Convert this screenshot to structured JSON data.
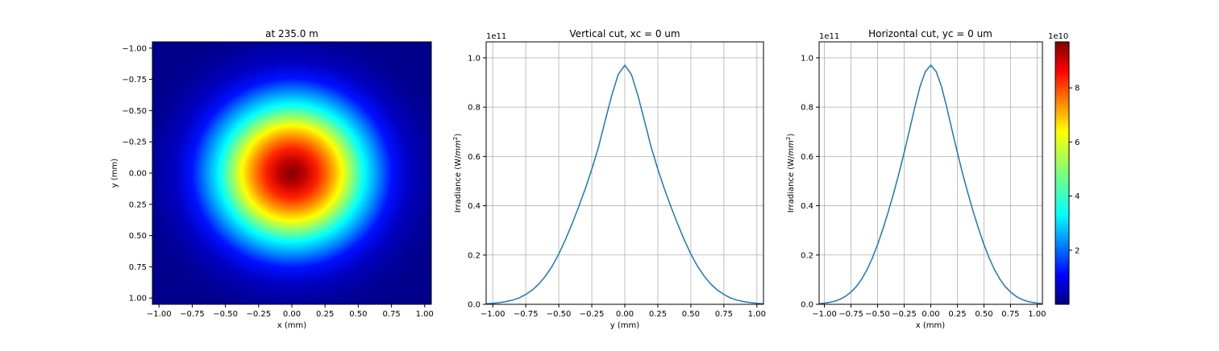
{
  "chart_data": [
    {
      "type": "heatmap",
      "title": "at 235.0 m",
      "xlabel": "x (mm)",
      "ylabel": "y (mm)",
      "xlim": [
        -1.05,
        1.05
      ],
      "ylim": [
        1.05,
        -1.05
      ],
      "xticks": [
        "−1.00",
        "−0.75",
        "−0.50",
        "−0.25",
        "0.00",
        "0.25",
        "0.50",
        "0.75",
        "1.00"
      ],
      "xtick_values": [
        -1.0,
        -0.75,
        -0.5,
        -0.25,
        0.0,
        0.25,
        0.5,
        0.75,
        1.0
      ],
      "yticks": [
        "−1.00",
        "−0.75",
        "−0.50",
        "−0.25",
        "0.00",
        "0.25",
        "0.50",
        "0.75",
        "1.00"
      ],
      "ytick_values": [
        -1.0,
        -0.75,
        -0.5,
        -0.25,
        0.0,
        0.25,
        0.5,
        0.75,
        1.0
      ],
      "colormap": "jet",
      "peak": 97000000000.0,
      "center": [
        0.0,
        0.0
      ],
      "sigma": 0.3
    },
    {
      "type": "line",
      "title": "Vertical cut,  xc = 0 um",
      "xlabel": "y (mm)",
      "ylabel": "Irradiance (W/mm²)",
      "offset_text": "1e11",
      "xlim": [
        -1.05,
        1.05
      ],
      "ylim": [
        0,
        1.065
      ],
      "xticks": [
        "−1.00",
        "−0.75",
        "−0.50",
        "−0.25",
        "0.00",
        "0.25",
        "0.50",
        "0.75",
        "1.00"
      ],
      "xtick_values": [
        -1.0,
        -0.75,
        -0.5,
        -0.25,
        0.0,
        0.25,
        0.5,
        0.75,
        1.0
      ],
      "yticks": [
        "0.0",
        "0.2",
        "0.4",
        "0.6",
        "0.8",
        "1.0"
      ],
      "ytick_values": [
        0.0,
        0.2,
        0.4,
        0.6,
        0.8,
        1.0
      ],
      "grid": true,
      "color": "#1f77b4",
      "series": [
        {
          "x": [
            -1.05,
            -1.0,
            -0.95,
            -0.9,
            -0.85,
            -0.8,
            -0.75,
            -0.7,
            -0.65,
            -0.6,
            -0.55,
            -0.5,
            -0.45,
            -0.4,
            -0.35,
            -0.3,
            -0.25,
            -0.2,
            -0.15,
            -0.1,
            -0.05,
            0.0,
            0.05,
            0.1,
            0.15,
            0.2,
            0.25,
            0.3,
            0.35,
            0.4,
            0.45,
            0.5,
            0.55,
            0.6,
            0.65,
            0.7,
            0.75,
            0.8,
            0.85,
            0.9,
            0.95,
            1.0,
            1.05
          ],
          "y": [
            0.002,
            0.004,
            0.007,
            0.011,
            0.017,
            0.026,
            0.04,
            0.058,
            0.083,
            0.115,
            0.155,
            0.204,
            0.262,
            0.326,
            0.395,
            0.468,
            0.548,
            0.637,
            0.742,
            0.846,
            0.933,
            0.97,
            0.933,
            0.846,
            0.742,
            0.637,
            0.548,
            0.468,
            0.395,
            0.326,
            0.262,
            0.204,
            0.155,
            0.115,
            0.083,
            0.058,
            0.04,
            0.026,
            0.017,
            0.011,
            0.007,
            0.004,
            0.002
          ]
        }
      ]
    },
    {
      "type": "line",
      "title": "Horizontal cut, yc = 0 um",
      "xlabel": "x (mm)",
      "ylabel": "Irradiance (W/mm²)",
      "offset_text": "1e11",
      "xlim": [
        -1.05,
        1.05
      ],
      "ylim": [
        0,
        1.065
      ],
      "xticks": [
        "−1.00",
        "−0.75",
        "−0.50",
        "−0.25",
        "0.00",
        "0.25",
        "0.50",
        "0.75",
        "1.00"
      ],
      "xtick_values": [
        -1.0,
        -0.75,
        -0.5,
        -0.25,
        0.0,
        0.25,
        0.5,
        0.75,
        1.0
      ],
      "yticks": [
        "0.0",
        "0.2",
        "0.4",
        "0.6",
        "0.8",
        "1.0"
      ],
      "ytick_values": [
        0.0,
        0.2,
        0.4,
        0.6,
        0.8,
        1.0
      ],
      "grid": true,
      "color": "#1f77b4",
      "series": [
        {
          "x": [
            -1.05,
            -1.0,
            -0.95,
            -0.9,
            -0.85,
            -0.8,
            -0.75,
            -0.7,
            -0.65,
            -0.6,
            -0.55,
            -0.5,
            -0.45,
            -0.4,
            -0.35,
            -0.3,
            -0.25,
            -0.2,
            -0.15,
            -0.1,
            -0.05,
            0.0,
            0.05,
            0.1,
            0.15,
            0.2,
            0.25,
            0.3,
            0.35,
            0.4,
            0.45,
            0.5,
            0.55,
            0.6,
            0.65,
            0.7,
            0.75,
            0.8,
            0.85,
            0.9,
            0.95,
            1.0,
            1.05
          ],
          "y": [
            0.002,
            0.005,
            0.008,
            0.013,
            0.021,
            0.033,
            0.05,
            0.072,
            0.102,
            0.14,
            0.187,
            0.243,
            0.306,
            0.375,
            0.45,
            0.53,
            0.616,
            0.707,
            0.8,
            0.885,
            0.945,
            0.97,
            0.945,
            0.885,
            0.8,
            0.707,
            0.616,
            0.53,
            0.45,
            0.375,
            0.306,
            0.243,
            0.187,
            0.14,
            0.102,
            0.072,
            0.05,
            0.033,
            0.021,
            0.013,
            0.008,
            0.005,
            0.002
          ]
        }
      ]
    }
  ],
  "colorbar": {
    "offset_text": "1e10",
    "range": [
      0.0,
      9.7
    ],
    "ticks": [
      "2",
      "4",
      "6",
      "8"
    ],
    "tick_values": [
      2,
      4,
      6,
      8
    ]
  }
}
